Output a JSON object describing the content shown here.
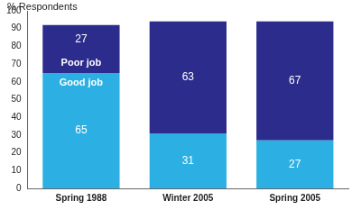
{
  "chart_data": {
    "type": "bar",
    "y_label": "% Respondents",
    "categories": [
      "Spring 1988",
      "Winter 2005",
      "Spring 2005"
    ],
    "series": [
      {
        "name": "Good job",
        "color": "#2cb0e4",
        "values": [
          65,
          31,
          27
        ]
      },
      {
        "name": "Poor job",
        "color": "#2b2c8c",
        "values": [
          27,
          63,
          67
        ]
      }
    ],
    "stacked": true,
    "data_labels": true,
    "grid": false,
    "ylim": [
      0,
      100
    ],
    "yticks": [
      0,
      10,
      20,
      30,
      40,
      50,
      60,
      70,
      80,
      90,
      100
    ]
  }
}
